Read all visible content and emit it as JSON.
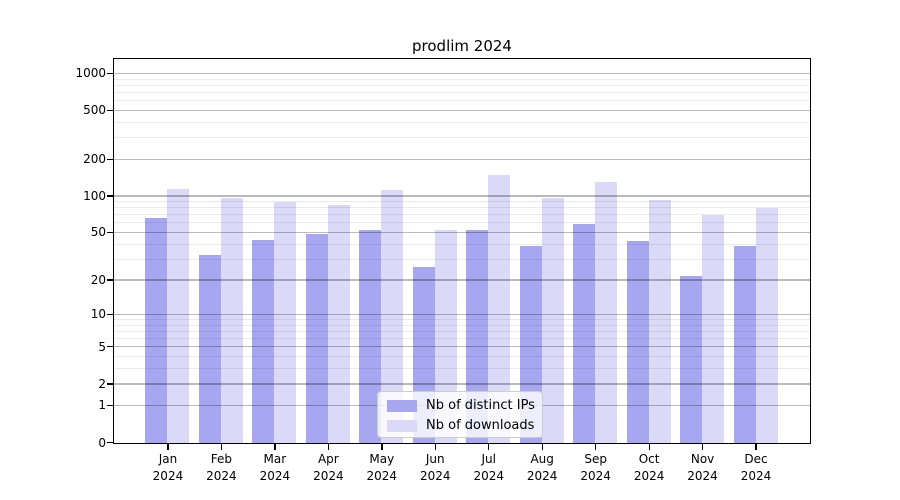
{
  "title": "prodlim 2024",
  "chart_data": {
    "type": "bar",
    "title": "prodlim 2024",
    "yscale": "log1p",
    "categories": [
      "Jan 2024",
      "Feb 2024",
      "Mar 2024",
      "Apr 2024",
      "May 2024",
      "Jun 2024",
      "Jul 2024",
      "Aug 2024",
      "Sep 2024",
      "Oct 2024",
      "Nov 2024",
      "Dec 2024"
    ],
    "series": [
      {
        "name": "Nb of distinct IPs",
        "color": "#a6a6f1",
        "values": [
          66,
          33,
          44,
          49,
          53,
          26,
          53,
          39,
          59,
          43,
          22,
          39
        ]
      },
      {
        "name": "Nb of downloads",
        "color": "#dadaf8",
        "values": [
          116,
          97,
          90,
          85,
          113,
          53,
          150,
          98,
          132,
          94,
          70,
          81
        ]
      }
    ],
    "y_ticks": [
      0,
      1,
      2,
      5,
      10,
      20,
      50,
      100,
      200,
      500,
      1000
    ],
    "y_tick_labels": [
      "0",
      "1",
      "2",
      "5",
      "10",
      "20",
      "50",
      "100",
      "200",
      "500",
      "1000"
    ],
    "y_minor_gridlines": [
      3,
      4,
      6,
      7,
      8,
      9,
      30,
      40,
      60,
      70,
      80,
      90,
      300,
      400,
      600,
      700,
      800,
      900
    ],
    "ylim": [
      0,
      1300
    ],
    "grid": "horizontal major and minor gridlines drawn over bars",
    "legend_position": "lower center"
  },
  "colors": {
    "background": "#ffffff",
    "spine": "#000000",
    "major_grid": "rgba(0,0,0,0.27)",
    "minor_grid": "rgba(0,0,0,0.08)",
    "legend_border": "#cccccc"
  }
}
